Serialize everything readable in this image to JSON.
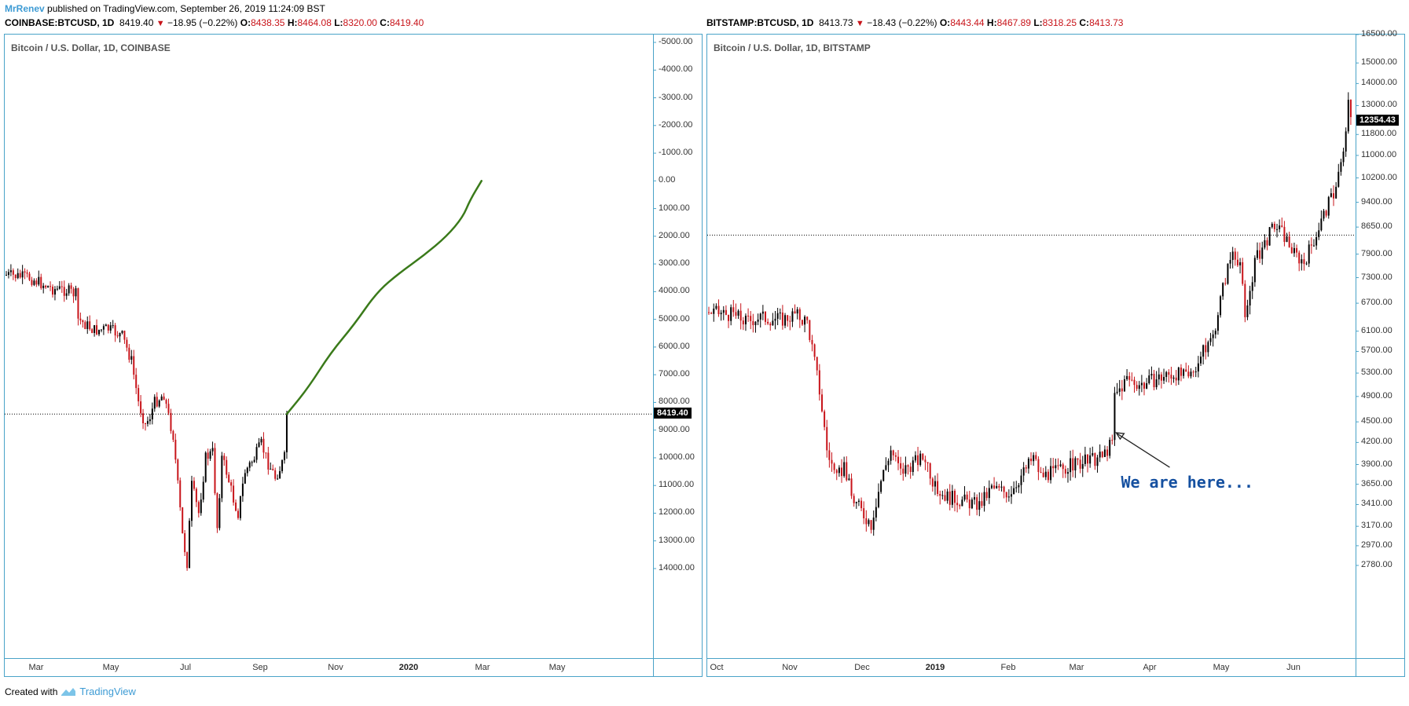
{
  "header": {
    "author": "MrRenev",
    "published": " published on TradingView.com, September 26, 2019 11:24:09 BST"
  },
  "symbols": {
    "left": {
      "ticker": "COINBASE:BTCUSD, 1D",
      "last": "8419.40",
      "change": "−18.95 (−0.22%)",
      "o_label": "O:",
      "o": "8438.35",
      "h_label": "H:",
      "h": "8464.08",
      "l_label": "L:",
      "l": "8320.00",
      "c_label": "C:",
      "c": "8419.40"
    },
    "right": {
      "ticker": "BITSTAMP:BTCUSD, 1D",
      "last": "8413.73",
      "change": "−18.43 (−0.22%)",
      "o_label": "O:",
      "o": "8443.44",
      "h_label": "H:",
      "h": "8467.89",
      "l_label": "L:",
      "l": "8318.25",
      "c_label": "C:",
      "c": "8413.73"
    }
  },
  "footer": {
    "created_with": "Created with",
    "brand": "TradingView"
  },
  "colors": {
    "up": "#000000",
    "down": "#c8141a",
    "projection": "#3a7a1a",
    "axis": "#4aa3c8",
    "annotation": "#1550a0"
  },
  "chart_data": [
    {
      "type": "candlestick",
      "title": "Bitcoin / U.S. Dollar, 1D, COINBASE",
      "price_tag": "8419.40",
      "y_inverted": true,
      "y_ticks": [
        "-5000.00",
        "-4000.00",
        "-3000.00",
        "-2000.00",
        "-1000.00",
        "0.00",
        "1000.00",
        "2000.00",
        "3000.00",
        "4000.00",
        "5000.00",
        "6000.00",
        "7000.00",
        "8000.00",
        "9000.00",
        "10000.00",
        "11000.00",
        "12000.00",
        "13000.00",
        "14000.00"
      ],
      "x_ticks": [
        {
          "label": "Mar",
          "bold": false
        },
        {
          "label": "May",
          "bold": false
        },
        {
          "label": "Jul",
          "bold": false
        },
        {
          "label": "Sep",
          "bold": false
        },
        {
          "label": "Nov",
          "bold": false
        },
        {
          "label": "2020",
          "bold": true
        },
        {
          "label": "Mar",
          "bold": false
        },
        {
          "label": "May",
          "bold": false
        }
      ],
      "horizontal_line": 8419.4,
      "price_path": [
        [
          0,
          3400
        ],
        [
          10,
          3500
        ],
        [
          20,
          3900
        ],
        [
          26,
          3950
        ],
        [
          30,
          4100
        ],
        [
          31,
          5000
        ],
        [
          38,
          5400
        ],
        [
          44,
          5350
        ],
        [
          50,
          5600
        ],
        [
          54,
          6500
        ],
        [
          57,
          8000
        ],
        [
          60,
          8800
        ],
        [
          62,
          8500
        ],
        [
          64,
          8000
        ],
        [
          68,
          7700
        ],
        [
          70,
          8500
        ],
        [
          72,
          9200
        ],
        [
          74,
          11000
        ],
        [
          76,
          12800
        ],
        [
          78,
          13800
        ],
        [
          80,
          11000
        ],
        [
          83,
          12000
        ],
        [
          86,
          10000
        ],
        [
          89,
          9800
        ],
        [
          91,
          12500
        ],
        [
          93,
          10000
        ],
        [
          95,
          10500
        ],
        [
          98,
          11500
        ],
        [
          100,
          12000
        ],
        [
          103,
          10500
        ],
        [
          107,
          10000
        ],
        [
          110,
          9500
        ],
        [
          113,
          10200
        ],
        [
          116,
          10700
        ],
        [
          118,
          10400
        ],
        [
          120,
          10000
        ],
        [
          121,
          8419
        ]
      ],
      "projection": [
        [
          121,
          8419
        ],
        [
          130,
          7500
        ],
        [
          140,
          6200
        ],
        [
          150,
          5200
        ],
        [
          160,
          4000
        ],
        [
          170,
          3300
        ],
        [
          180,
          2700
        ],
        [
          190,
          2000
        ],
        [
          197,
          1300
        ],
        [
          200,
          700
        ],
        [
          205,
          0
        ]
      ]
    },
    {
      "type": "candlestick",
      "title": "Bitcoin / U.S. Dollar, 1D, BITSTAMP",
      "price_tag": "12354.43",
      "y_scale": "log",
      "y_ticks": [
        "16500.00",
        "15000.00",
        "14000.00",
        "13000.00",
        "11800.00",
        "11000.00",
        "10200.00",
        "9400.00",
        "8650.00",
        "7900.00",
        "7300.00",
        "6700.00",
        "6100.00",
        "5700.00",
        "5300.00",
        "4900.00",
        "4500.00",
        "4200.00",
        "3900.00",
        "3650.00",
        "3410.00",
        "3170.00",
        "2970.00",
        "2780.00"
      ],
      "x_ticks": [
        {
          "label": "Oct",
          "bold": false
        },
        {
          "label": "Nov",
          "bold": false
        },
        {
          "label": "Dec",
          "bold": false
        },
        {
          "label": "2019",
          "bold": true
        },
        {
          "label": "Feb",
          "bold": false
        },
        {
          "label": "Mar",
          "bold": false
        },
        {
          "label": "Apr",
          "bold": false
        },
        {
          "label": "May",
          "bold": false
        },
        {
          "label": "Jun",
          "bold": false
        }
      ],
      "horizontal_line": 8419.4,
      "annotation": "We are here...",
      "price_path": [
        [
          0,
          6500
        ],
        [
          10,
          6450
        ],
        [
          15,
          6300
        ],
        [
          20,
          6400
        ],
        [
          30,
          6350
        ],
        [
          35,
          6450
        ],
        [
          40,
          6300
        ],
        [
          43,
          5500
        ],
        [
          45,
          5000
        ],
        [
          48,
          4100
        ],
        [
          52,
          3700
        ],
        [
          55,
          3900
        ],
        [
          58,
          3500
        ],
        [
          63,
          3300
        ],
        [
          66,
          3200
        ],
        [
          70,
          3700
        ],
        [
          74,
          4100
        ],
        [
          78,
          3800
        ],
        [
          82,
          3900
        ],
        [
          88,
          4000
        ],
        [
          92,
          3600
        ],
        [
          97,
          3500
        ],
        [
          104,
          3450
        ],
        [
          110,
          3400
        ],
        [
          115,
          3600
        ],
        [
          122,
          3550
        ],
        [
          128,
          3800
        ],
        [
          132,
          4000
        ],
        [
          135,
          3750
        ],
        [
          140,
          3800
        ],
        [
          148,
          3900
        ],
        [
          155,
          3950
        ],
        [
          160,
          4000
        ],
        [
          164,
          4200
        ],
        [
          165,
          4900
        ],
        [
          170,
          5200
        ],
        [
          176,
          5100
        ],
        [
          182,
          5200
        ],
        [
          190,
          5300
        ],
        [
          195,
          5200
        ],
        [
          200,
          5600
        ],
        [
          205,
          6000
        ],
        [
          210,
          7300
        ],
        [
          213,
          8000
        ],
        [
          216,
          7700
        ],
        [
          218,
          6300
        ],
        [
          222,
          7700
        ],
        [
          226,
          8200
        ],
        [
          230,
          8700
        ],
        [
          234,
          8400
        ],
        [
          238,
          7900
        ],
        [
          242,
          7700
        ],
        [
          246,
          8300
        ],
        [
          250,
          9000
        ],
        [
          254,
          9700
        ],
        [
          258,
          11000
        ],
        [
          260,
          13000
        ],
        [
          261,
          12354
        ]
      ]
    }
  ]
}
